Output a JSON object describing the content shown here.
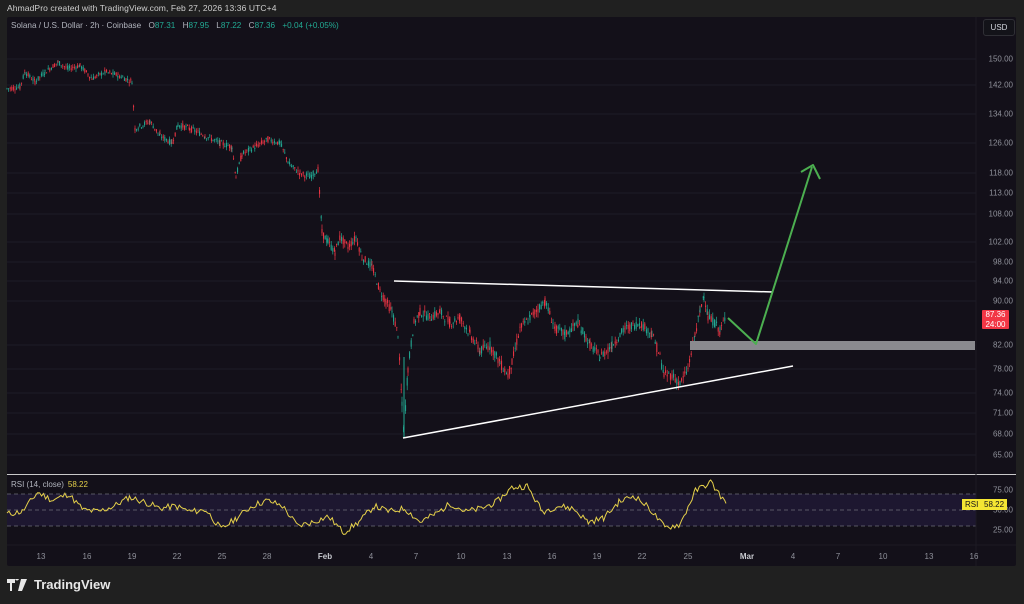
{
  "credit": "AhmadPro created with TradingView.com, Feb 27, 2026 13:36 UTC+4",
  "legend": {
    "symbol": "Solana / U.S. Dollar · 2h · Coinbase",
    "o_label": "O",
    "o": "87.31",
    "h_label": "H",
    "h": "87.95",
    "l_label": "L",
    "l": "87.22",
    "c_label": "C",
    "c": "87.36",
    "change": "+0.04 (+0.05%)"
  },
  "currency_button": "USD",
  "price_label": {
    "price": "87.36",
    "countdown": "24:00"
  },
  "rsi": {
    "title": "RSI (14, close)",
    "value": "58.22",
    "tag": "RSI"
  },
  "brand": "TradingView",
  "colors": {
    "up": "#22ab94",
    "down": "#f23645",
    "rsi": "#e5d04a",
    "arrow": "#4caf50",
    "trendline": "#ffffff",
    "zone": "#8a8a8f"
  },
  "chart_data": [
    {
      "type": "line",
      "title": "Solana / U.S. Dollar · 2h · Coinbase",
      "xlabel": "",
      "ylabel": "USD",
      "x_ticks": [
        "13",
        "16",
        "19",
        "22",
        "25",
        "28",
        "Feb",
        "4",
        "7",
        "10",
        "13",
        "16",
        "19",
        "22",
        "25",
        "Mar",
        "4",
        "7",
        "10",
        "13",
        "16"
      ],
      "y_ticks": [
        150.0,
        142.0,
        134.0,
        126.0,
        118.0,
        113.0,
        108.0,
        102.0,
        98.0,
        94.0,
        90.0,
        82.0,
        78.0,
        74.0,
        71.0,
        68.0,
        65.0
      ],
      "ylim": [
        63,
        160
      ],
      "x": [
        "Jan 11",
        "Jan 13",
        "Jan 14",
        "Jan 15",
        "Jan 16",
        "Jan 18",
        "Jan 19",
        "Jan 20",
        "Jan 21",
        "Jan 22",
        "Jan 24",
        "Jan 25",
        "Jan 26",
        "Jan 27",
        "Jan 28",
        "Jan 29",
        "Jan 30",
        "Jan 31",
        "Feb 1",
        "Feb 2",
        "Feb 3",
        "Feb 4",
        "Feb 5",
        "Feb 6",
        "Feb 7",
        "Feb 8",
        "Feb 10",
        "Feb 12",
        "Feb 13",
        "Feb 15",
        "Feb 17",
        "Feb 19",
        "Feb 21",
        "Feb 22",
        "Feb 24",
        "Feb 25",
        "Feb 26",
        "Feb 27"
      ],
      "values": [
        141,
        144,
        148,
        146,
        145,
        142,
        131,
        129,
        128,
        127,
        126,
        121,
        126,
        127,
        122,
        120,
        115,
        103,
        100,
        97,
        93,
        90,
        67,
        84,
        88,
        87,
        85,
        81,
        85,
        91,
        85,
        83,
        84,
        79,
        77,
        82,
        91,
        87.36
      ],
      "series": [
        {
          "name": "SOLUSD close (approx)"
        }
      ],
      "annotations": [
        {
          "type": "trendline",
          "label": "descending resistance",
          "from": {
            "x": "Feb 5",
            "y": 94.5
          },
          "to": {
            "x": "Mar 2",
            "y": 92.0
          }
        },
        {
          "type": "trendline",
          "label": "ascending support",
          "from": {
            "x": "Feb 5",
            "y": 67.5
          },
          "to": {
            "x": "Mar 5",
            "y": 79.5
          }
        },
        {
          "type": "zone",
          "label": "support zone",
          "y_range": [
            81.2,
            82.6
          ]
        },
        {
          "type": "arrow",
          "label": "projected pullback then breakout",
          "points": [
            {
              "x": "Feb 27",
              "y": 85.5
            },
            {
              "x": "Mar 2",
              "y": 81.8
            },
            {
              "x": "Mar 5",
              "y": 120
            }
          ]
        }
      ],
      "grid": true,
      "legend_position": "top-left"
    },
    {
      "type": "line",
      "title": "RSI (14, close)",
      "y_ticks": [
        75.0,
        50.0,
        25.0
      ],
      "ylim": [
        10,
        90
      ],
      "bands": [
        30,
        50,
        70
      ],
      "last_value": 58.22,
      "values": [
        45,
        48,
        72,
        62,
        70,
        50,
        48,
        55,
        66,
        60,
        52,
        55,
        48,
        50,
        26,
        40,
        55,
        62,
        55,
        30,
        35,
        42,
        22,
        35,
        55,
        48,
        52,
        35,
        45,
        58,
        48,
        52,
        60,
        78,
        80,
        48,
        55,
        52,
        35,
        40,
        60,
        68,
        52,
        28,
        32,
        74,
        85,
        58.22
      ]
    }
  ]
}
